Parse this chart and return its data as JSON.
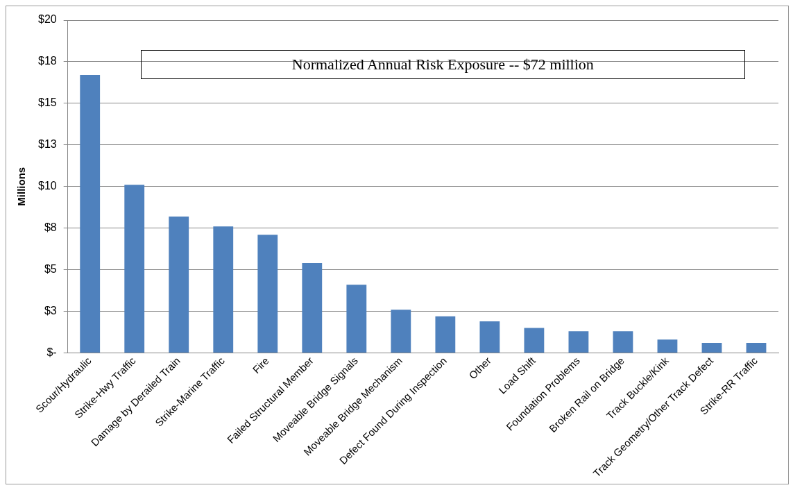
{
  "chart_data": {
    "type": "bar",
    "ylabel": "Millions",
    "annotations": [
      "Normalized Annual Risk Exposure -- $72 million"
    ],
    "categories": [
      "Scour/Hydraulic",
      "Strike-Hwy Traffic",
      "Damage by Derailed Train",
      "Strike-Marine Traffic",
      "Fire",
      "Failed Structural Member",
      "Moveable Bridge Signals",
      "Moveable Bridge Mechanism",
      "Defect Found During Inspection",
      "Other",
      "Load Shift",
      "Foundation Problems",
      "Broken Rail on Bridge",
      "Track Buckle/Kink",
      "Track Geometry/Other Track Defect",
      "Strike-RR Traffic"
    ],
    "values": [
      16.7,
      10.1,
      8.2,
      7.6,
      7.1,
      5.4,
      4.1,
      2.6,
      2.2,
      1.9,
      1.5,
      1.3,
      1.3,
      0.8,
      0.6,
      0.6
    ],
    "color": "#4f81bd",
    "ylim": [
      0,
      20
    ],
    "yticks": [
      {
        "value": 0,
        "label": "$-"
      },
      {
        "value": 2.5,
        "label": "$3"
      },
      {
        "value": 5,
        "label": "$5"
      },
      {
        "value": 7.5,
        "label": "$8"
      },
      {
        "value": 10,
        "label": "$10"
      },
      {
        "value": 12.5,
        "label": "$13"
      },
      {
        "value": 15,
        "label": "$15"
      },
      {
        "value": 17.5,
        "label": "$18"
      },
      {
        "value": 20,
        "label": "$20"
      }
    ],
    "grid": "y",
    "legend": false
  }
}
